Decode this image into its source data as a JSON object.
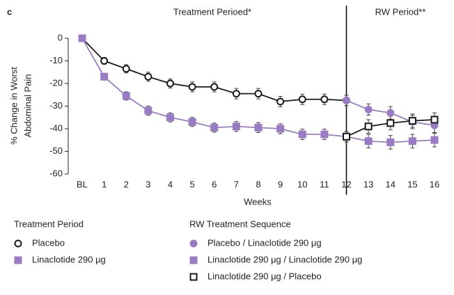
{
  "chart_data": {
    "type": "line",
    "panel_label": "c",
    "annotations": [
      "Treatment Perioed*",
      "RW Period**"
    ],
    "divider": "12",
    "xlabel": "Weeks",
    "ylabel": [
      "% Change in Worst",
      "Abdominal Pain"
    ],
    "categories": [
      "BL",
      "1",
      "2",
      "3",
      "4",
      "5",
      "6",
      "7",
      "8",
      "9",
      "10",
      "11",
      "12",
      "13",
      "14",
      "15",
      "16"
    ],
    "ylim": [
      -60,
      0
    ],
    "yticks": [
      0,
      -10,
      -20,
      -30,
      -40,
      -50,
      -60
    ],
    "groups": [
      "Treatment Period",
      "RW Treatment Sequence"
    ],
    "series": [
      {
        "name": "Placebo",
        "group": 0,
        "color": "#1a1a1a",
        "marker": "circle-open",
        "values": [
          0,
          -10,
          -13.5,
          -17,
          -20,
          -21.5,
          -21.5,
          -24.5,
          -24.5,
          -28,
          -27,
          -27,
          -27.5,
          null,
          null,
          null,
          null
        ],
        "errors": [
          0,
          1.5,
          1.8,
          2,
          2,
          2.2,
          2.2,
          2.3,
          2.3,
          2.3,
          2.3,
          2.3,
          2.3,
          null,
          null,
          null,
          null
        ]
      },
      {
        "name": "Linaclotide 290 μg",
        "group": 0,
        "color": "#9a7cc4",
        "marker": "square",
        "values": [
          0,
          -17,
          -25.5,
          -32,
          -35,
          -37,
          -39.5,
          -39,
          -39.5,
          -40,
          -42.5,
          -42.5,
          -43.5,
          null,
          null,
          null,
          null
        ],
        "errors": [
          0,
          1.5,
          1.8,
          2,
          2,
          2,
          2,
          2.2,
          2.2,
          2.2,
          2.3,
          2.3,
          2.3,
          null,
          null,
          null,
          null
        ]
      },
      {
        "name": "Placebo / Linaclotide 290 μg",
        "group": 1,
        "color": "#9a7cc4",
        "marker": "circle",
        "values": [
          null,
          null,
          null,
          null,
          null,
          null,
          null,
          null,
          null,
          null,
          null,
          null,
          -27.5,
          -31.5,
          -33,
          -37,
          -38.5
        ],
        "errors": [
          null,
          null,
          null,
          null,
          null,
          null,
          null,
          null,
          null,
          null,
          null,
          null,
          2.3,
          2.5,
          2.8,
          3,
          3.2
        ]
      },
      {
        "name": "Linaclotide 290 μg / Linaclotide 290 μg",
        "group": 1,
        "color": "#9a7cc4",
        "marker": "square",
        "values": [
          null,
          null,
          null,
          null,
          null,
          null,
          null,
          null,
          null,
          null,
          null,
          null,
          -43.5,
          -45.5,
          -46,
          -45.5,
          -45
        ],
        "errors": [
          null,
          null,
          null,
          null,
          null,
          null,
          null,
          null,
          null,
          null,
          null,
          null,
          2.3,
          3,
          3,
          3,
          3
        ]
      },
      {
        "name": "Linaclotide 290 μg / Placebo",
        "group": 1,
        "color": "#1a1a1a",
        "marker": "square-open",
        "values": [
          null,
          null,
          null,
          null,
          null,
          null,
          null,
          null,
          null,
          null,
          null,
          null,
          -43.5,
          -39,
          -37.5,
          -36.5,
          -36
        ],
        "errors": [
          null,
          null,
          null,
          null,
          null,
          null,
          null,
          null,
          null,
          null,
          null,
          null,
          2.3,
          3,
          3,
          3,
          3
        ]
      }
    ]
  }
}
